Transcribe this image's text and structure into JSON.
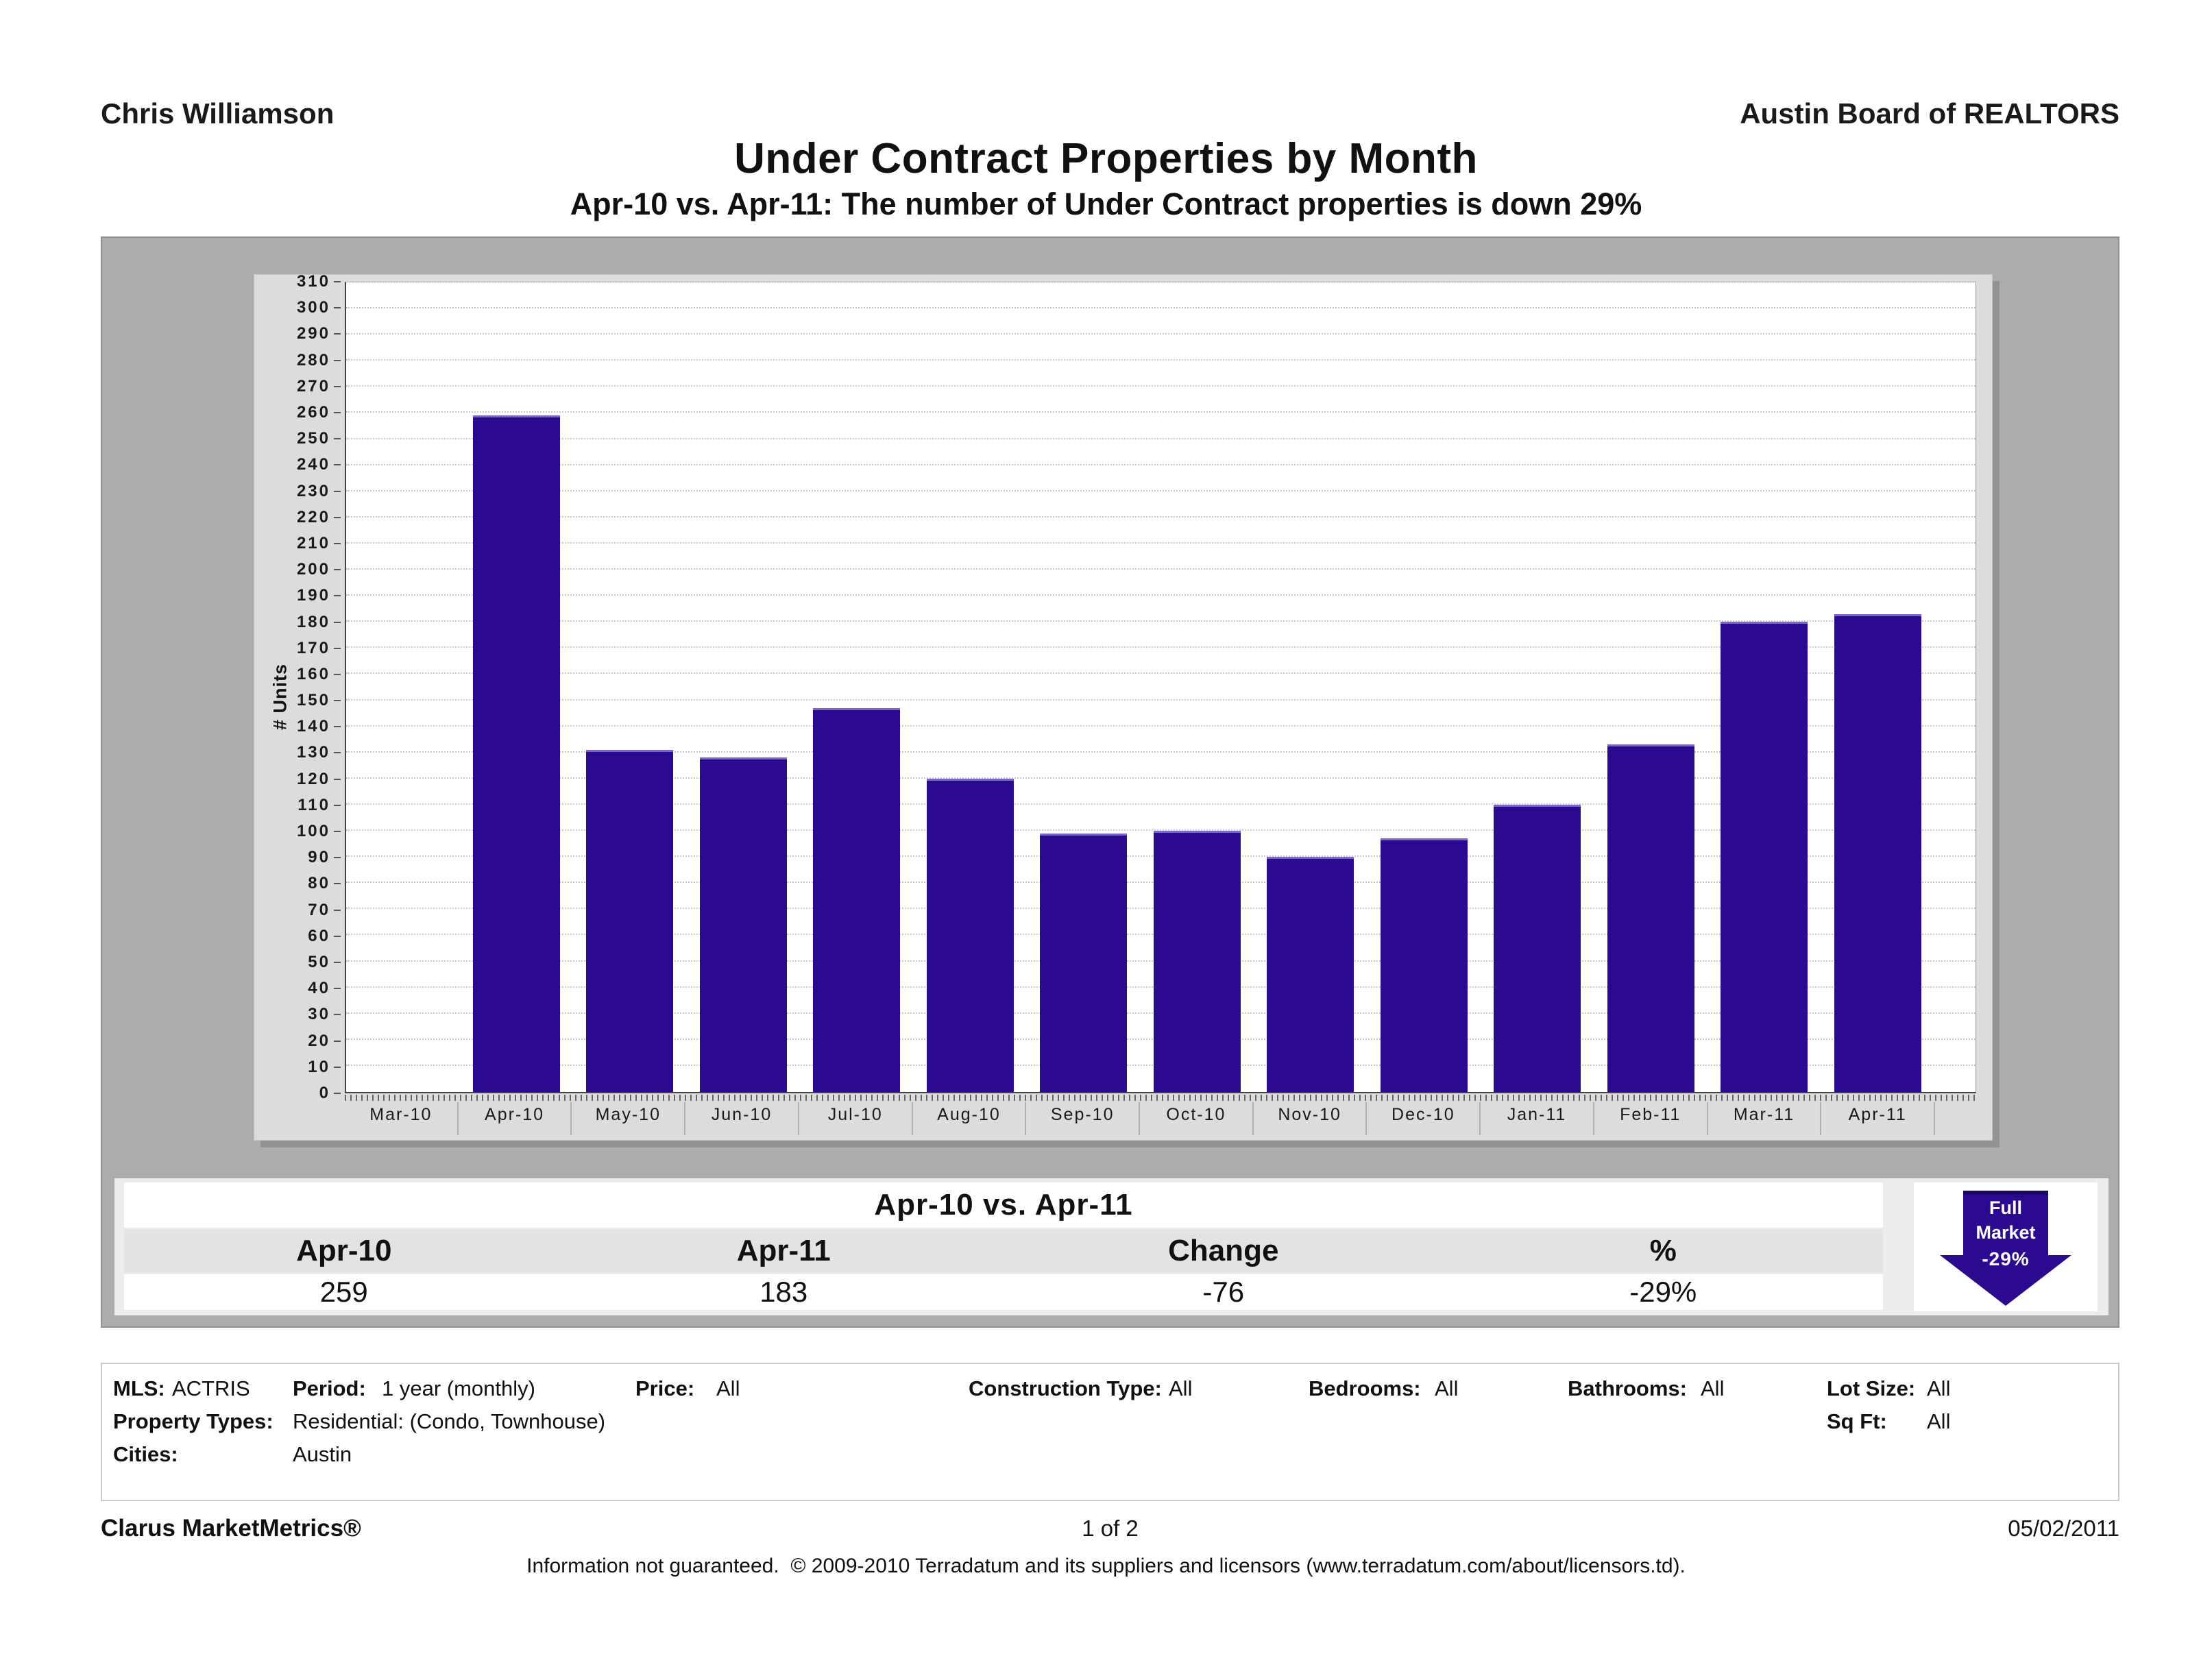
{
  "header": {
    "agent": "Chris Williamson",
    "board": "Austin Board of REALTORS",
    "title": "Under Contract Properties by Month",
    "subtitle": "Apr-10 vs. Apr-11: The number of Under Contract properties is down 29%"
  },
  "chart_data": {
    "type": "bar",
    "title": "Under Contract Properties by Month",
    "xlabel": "",
    "ylabel": "# Units",
    "ylim": [
      0,
      310
    ],
    "ytick_step": 10,
    "grid": true,
    "bar_color": "#2b0a90",
    "categories": [
      "Mar-10",
      "Apr-10",
      "May-10",
      "Jun-10",
      "Jul-10",
      "Aug-10",
      "Sep-10",
      "Oct-10",
      "Nov-10",
      "Dec-10",
      "Jan-11",
      "Feb-11",
      "Mar-11",
      "Apr-11"
    ],
    "values": [
      0,
      259,
      131,
      128,
      147,
      120,
      99,
      100,
      90,
      97,
      110,
      133,
      180,
      183
    ]
  },
  "summary": {
    "title": "Apr-10 vs. Apr-11",
    "headers": [
      "Apr-10",
      "Apr-11",
      "Change",
      "%"
    ],
    "values": [
      "259",
      "183",
      "-76",
      "-29%"
    ],
    "badge": {
      "line1": "Full",
      "line2": "Market",
      "value": "-29%"
    }
  },
  "criteria": {
    "mls_label": "MLS:",
    "mls": "ACTRIS",
    "period_label": "Period:",
    "period": "1 year (monthly)",
    "price_label": "Price:",
    "price": "All",
    "construction_label": "Construction Type:",
    "construction": "All",
    "bedrooms_label": "Bedrooms:",
    "bedrooms": "All",
    "bathrooms_label": "Bathrooms:",
    "bathrooms": "All",
    "lot_label": "Lot Size:",
    "lot": "All",
    "property_label": "Property Types:",
    "property": "Residential: (Condo, Townhouse)",
    "sqft_label": "Sq Ft:",
    "sqft": "All",
    "cities_label": "Cities:",
    "cities": "Austin"
  },
  "footer": {
    "brand": "Clarus MarketMetrics®",
    "page": "1 of 2",
    "date": "05/02/2011",
    "disclaimer": "Information not guaranteed.  © 2009-2010 Terradatum and its suppliers and licensors (www.terradatum.com/about/licensors.td)."
  }
}
